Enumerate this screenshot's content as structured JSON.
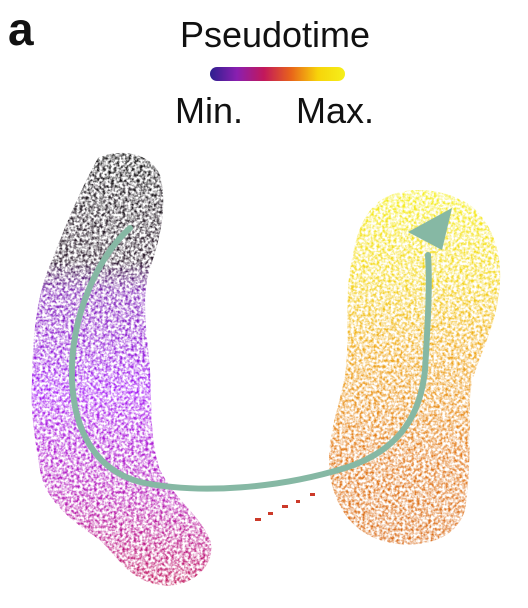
{
  "panel_label": "a",
  "legend": {
    "title": "Pseudotime",
    "min_label": "Min.",
    "max_label": "Max.",
    "gradient": [
      "#2d1f8f",
      "#8a1fb0",
      "#c2185b",
      "#e8641a",
      "#f7d40a",
      "#f5ef1a"
    ]
  },
  "colors": {
    "start_cluster": "#111111",
    "early": "#9b19f5",
    "mid": "#c2185b",
    "late": "#e67e12",
    "end_cluster": "#f4e41c",
    "trajectory_arrow": "#86b8a4"
  },
  "icons": {
    "trajectory": "curved-arrow-icon"
  }
}
